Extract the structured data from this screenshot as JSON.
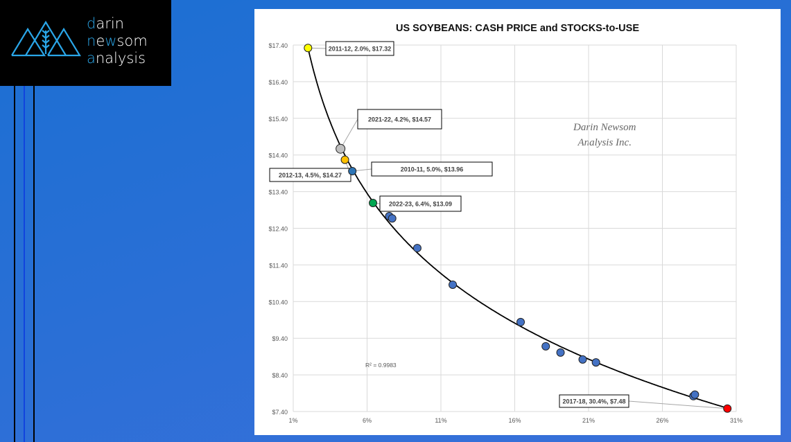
{
  "logo": {
    "line1": "darin",
    "line2": "newsom",
    "line3": "analysis"
  },
  "watermark": {
    "line1": "Darin Newsom",
    "line2": "Analysis Inc."
  },
  "chart_data": {
    "type": "scatter",
    "title": "US SOYBEANS: CASH PRICE and STOCKS-to-USE",
    "xlabel": "",
    "ylabel": "",
    "xlim": [
      1,
      31
    ],
    "ylim": [
      7.4,
      17.4
    ],
    "x_ticks": [
      "1%",
      "6%",
      "11%",
      "16%",
      "21%",
      "26%",
      "31%"
    ],
    "x_tick_values": [
      1,
      6,
      11,
      16,
      21,
      26,
      31
    ],
    "y_ticks": [
      "$17.40",
      "$16.40",
      "$15.40",
      "$14.40",
      "$13.40",
      "$12.40",
      "$11.40",
      "$10.40",
      "$9.40",
      "$8.40",
      "$7.40"
    ],
    "y_tick_values": [
      17.4,
      16.4,
      15.4,
      14.4,
      13.4,
      12.4,
      11.4,
      10.4,
      9.4,
      8.4,
      7.4
    ],
    "grid": true,
    "colors": {
      "default": "#4472c4",
      "yellow": "#ffff00",
      "gray": "#bfbfbf",
      "orange": "#ffc000",
      "blue": "#2e75b6",
      "green": "#00a651",
      "red": "#ff0000"
    },
    "points": [
      {
        "x": 2.0,
        "y": 17.32,
        "color": "yellow",
        "label": "2011-12, 2.0%, $17.32"
      },
      {
        "x": 4.2,
        "y": 14.57,
        "color": "gray",
        "label": "2021-22, 4.2%, $14.57"
      },
      {
        "x": 4.5,
        "y": 14.27,
        "color": "orange",
        "label": "2012-13, 4.5%, $14.27"
      },
      {
        "x": 5.0,
        "y": 13.96,
        "color": "blue",
        "label": "2010-11, 5.0%, $13.96"
      },
      {
        "x": 6.4,
        "y": 13.09,
        "color": "green",
        "label": "2022-23, 6.4%, $13.09"
      },
      {
        "x": 7.5,
        "y": 12.73,
        "color": "default"
      },
      {
        "x": 7.7,
        "y": 12.67,
        "color": "default"
      },
      {
        "x": 9.4,
        "y": 11.86,
        "color": "default"
      },
      {
        "x": 11.8,
        "y": 10.86,
        "color": "default"
      },
      {
        "x": 16.4,
        "y": 9.84,
        "color": "default"
      },
      {
        "x": 18.1,
        "y": 9.18,
        "color": "default"
      },
      {
        "x": 19.1,
        "y": 9.01,
        "color": "default"
      },
      {
        "x": 20.6,
        "y": 8.82,
        "color": "default"
      },
      {
        "x": 21.5,
        "y": 8.74,
        "color": "default"
      },
      {
        "x": 28.1,
        "y": 7.82,
        "color": "default"
      },
      {
        "x": 28.2,
        "y": 7.86,
        "color": "default"
      },
      {
        "x": 30.4,
        "y": 7.48,
        "color": "red",
        "label": "2017-18, 30.4%, $7.48"
      }
    ],
    "trendline": {
      "type": "logarithmic",
      "r_squared_label": "R² = 0.9983"
    }
  }
}
